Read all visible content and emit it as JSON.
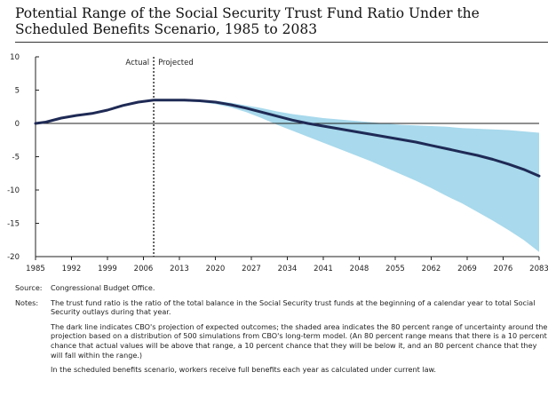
{
  "header": {
    "title_line1": "Potential Range of the Social Security Trust Fund Ratio Under the",
    "title_line2": "Scheduled Benefits Scenario, 1985 to 2083"
  },
  "chart_data": {
    "type": "area",
    "title": "Potential Range of the Social Security Trust Fund Ratio Under the Scheduled Benefits Scenario, 1985 to 2083",
    "xlabel": "",
    "ylabel": "",
    "xlim": [
      1985,
      2083
    ],
    "ylim": [
      -20,
      10
    ],
    "x_ticks": [
      "1985",
      "1992",
      "1999",
      "2006",
      "2013",
      "2020",
      "2027",
      "2034",
      "2041",
      "2048",
      "2055",
      "2062",
      "2069",
      "2076",
      "2083"
    ],
    "y_ticks": [
      "10",
      "5",
      "0",
      "-5",
      "-10",
      "-15",
      "-20"
    ],
    "grid": false,
    "annotations": [
      "Actual",
      "Projected"
    ],
    "divider_x": 2008,
    "series": [
      {
        "role": "median",
        "color": "#1f2a55",
        "x": [
          1985,
          1987,
          1990,
          1993,
          1996,
          1999,
          2002,
          2005,
          2008,
          2011,
          2014,
          2017,
          2020,
          2023,
          2026,
          2029,
          2032,
          2035,
          2038,
          2041,
          2044,
          2047,
          2050,
          2053,
          2056,
          2059,
          2062,
          2065,
          2068,
          2071,
          2074,
          2077,
          2080,
          2083
        ],
        "y": [
          0,
          0.2,
          0.8,
          1.2,
          1.5,
          2.0,
          2.7,
          3.2,
          3.5,
          3.5,
          3.5,
          3.4,
          3.2,
          2.8,
          2.3,
          1.7,
          1.1,
          0.5,
          0,
          -0.4,
          -0.8,
          -1.2,
          -1.6,
          -2.0,
          -2.4,
          -2.8,
          -3.3,
          -3.8,
          -4.3,
          -4.8,
          -5.4,
          -6.1,
          -6.9,
          -7.9
        ]
      },
      {
        "role": "upper-10th-percentile",
        "color": "#a8d9ec",
        "x": [
          2008,
          2011,
          2014,
          2017,
          2020,
          2023,
          2026,
          2029,
          2032,
          2035,
          2038,
          2041,
          2044,
          2047,
          2050,
          2053,
          2056,
          2059,
          2062,
          2065,
          2068,
          2071,
          2074,
          2077,
          2080,
          2083
        ],
        "y": [
          3.5,
          3.6,
          3.6,
          3.5,
          3.4,
          3.1,
          2.7,
          2.3,
          1.8,
          1.4,
          1.1,
          0.8,
          0.6,
          0.4,
          0.2,
          0,
          -0.2,
          -0.3,
          -0.4,
          -0.5,
          -0.7,
          -0.8,
          -0.9,
          -1.0,
          -1.2,
          -1.4
        ]
      },
      {
        "role": "lower-10th-percentile",
        "color": "#a8d9ec",
        "x": [
          2008,
          2011,
          2014,
          2017,
          2020,
          2023,
          2026,
          2029,
          2032,
          2035,
          2038,
          2041,
          2044,
          2047,
          2050,
          2053,
          2056,
          2059,
          2062,
          2065,
          2068,
          2071,
          2074,
          2077,
          2080,
          2083
        ],
        "y": [
          3.5,
          3.4,
          3.3,
          3.2,
          2.9,
          2.4,
          1.7,
          0.8,
          -0.2,
          -1.1,
          -2.0,
          -2.9,
          -3.8,
          -4.7,
          -5.6,
          -6.6,
          -7.6,
          -8.6,
          -9.7,
          -10.9,
          -12.0,
          -13.3,
          -14.6,
          -16.0,
          -17.5,
          -19.3
        ]
      }
    ]
  },
  "notes": {
    "source_head": "Source:",
    "source_text": "Congressional Budget Office.",
    "notes_head": "Notes:",
    "p1": "The trust fund ratio is the ratio of the total balance in the Social Security trust funds at the beginning of a calendar year to total Social Security outlays during that year.",
    "p2": "The dark line indicates CBO's projection of expected outcomes; the shaded area indicates the 80 percent range of uncertainty around the projection based on a distribution of 500 simulations from CBO's long-term model. (An 80 percent range means that there is a 10 percent chance that actual values will be above that range, a 10 percent chance that they will be below it, and an 80 percent chance that they will fall within the range.)",
    "p3": "In the scheduled benefits scenario, workers receive full benefits each year as calculated under current law."
  }
}
